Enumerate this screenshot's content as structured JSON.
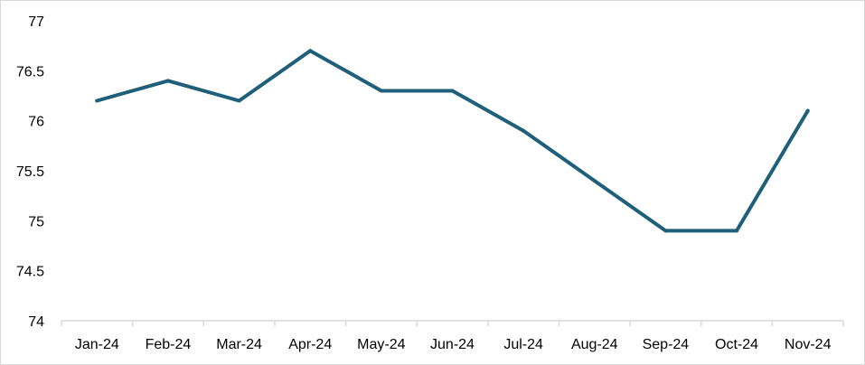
{
  "chart_data": {
    "type": "line",
    "title": "",
    "xlabel": "",
    "ylabel": "",
    "categories": [
      "Jan-24",
      "Feb-24",
      "Mar-24",
      "Apr-24",
      "May-24",
      "Jun-24",
      "Jul-24",
      "Aug-24",
      "Sep-24",
      "Oct-24",
      "Nov-24"
    ],
    "series": [
      {
        "values": [
          76.2,
          76.4,
          76.2,
          76.7,
          76.3,
          76.3,
          75.9,
          75.4,
          74.9,
          74.9,
          76.1
        ],
        "color": "#1f5f7a"
      }
    ],
    "ylim": [
      74,
      77
    ],
    "y_ticks": [
      74,
      74.5,
      75,
      75.5,
      76,
      76.5,
      77
    ],
    "y_tick_labels": [
      "74",
      "74.5",
      "75",
      "75.5",
      "76",
      "76.5",
      "77"
    ],
    "grid": false,
    "legend": "none",
    "axis_color": "#d9d9d9"
  }
}
